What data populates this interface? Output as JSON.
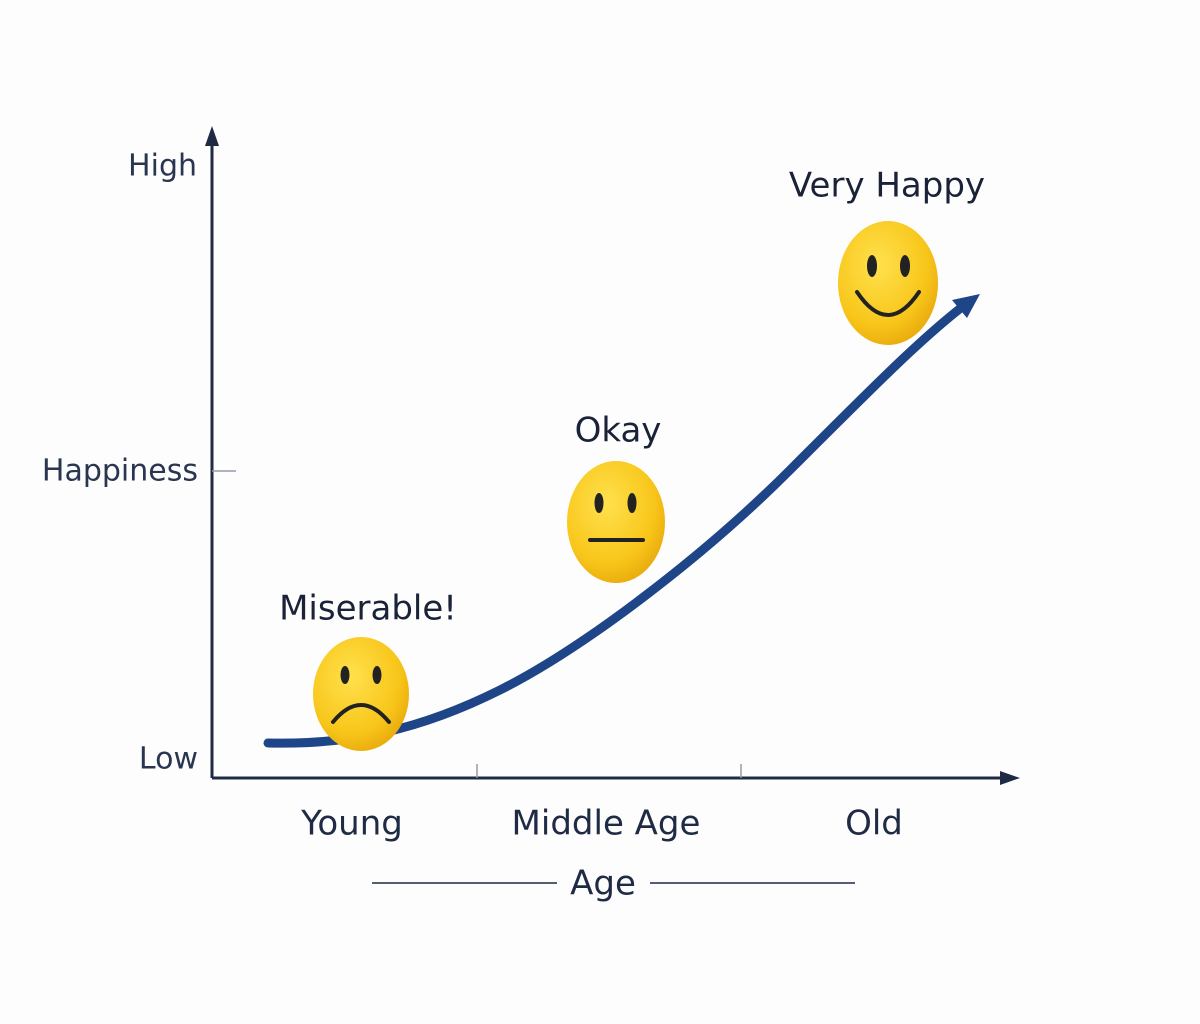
{
  "y_axis": {
    "top_label": "High",
    "title": "Happiness",
    "bottom_label": "Low"
  },
  "x_axis": {
    "categories": [
      "Young",
      "Middle Age",
      "Old"
    ],
    "title": "Age"
  },
  "faces": [
    {
      "label": "Miserable!"
    },
    {
      "label": "Okay"
    },
    {
      "label": "Very Happy"
    }
  ]
}
